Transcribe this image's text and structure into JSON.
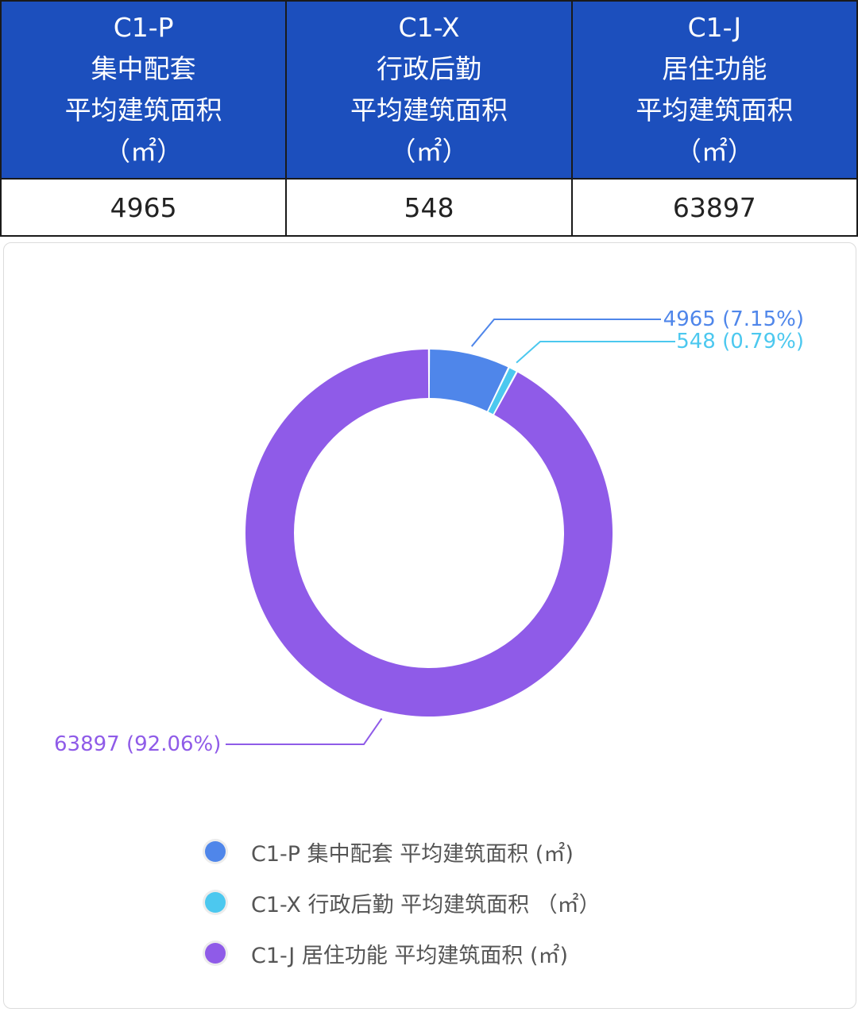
{
  "table": {
    "columns": [
      {
        "code": "C1-P",
        "name": "集中配套",
        "metric": "平均建筑面积",
        "unit": "（㎡）",
        "value": "4965"
      },
      {
        "code": "C1-X",
        "name": "行政后勤",
        "metric": "平均建筑面积",
        "unit": "（㎡）",
        "value": "548"
      },
      {
        "code": "C1-J",
        "name": "居住功能",
        "metric": "平均建筑面积",
        "unit": "（㎡）",
        "value": "63897"
      }
    ]
  },
  "chart_data": {
    "type": "pie",
    "donut": true,
    "labels": [
      "C1-P 集中配套 平均建筑面积 (㎡)",
      "C1-X 行政后勤 平均建筑面积 （㎡）",
      "C1-J 居住功能 平均建筑面积 (㎡)"
    ],
    "values": [
      4965,
      548,
      63897
    ],
    "percent_labels": [
      "4965 (7.15%)",
      "548 (0.79%)",
      "63897 (92.06%)"
    ],
    "colors": [
      "#4f86ea",
      "#4cc8ef",
      "#8f5be8"
    ],
    "legend_position": "bottom"
  }
}
